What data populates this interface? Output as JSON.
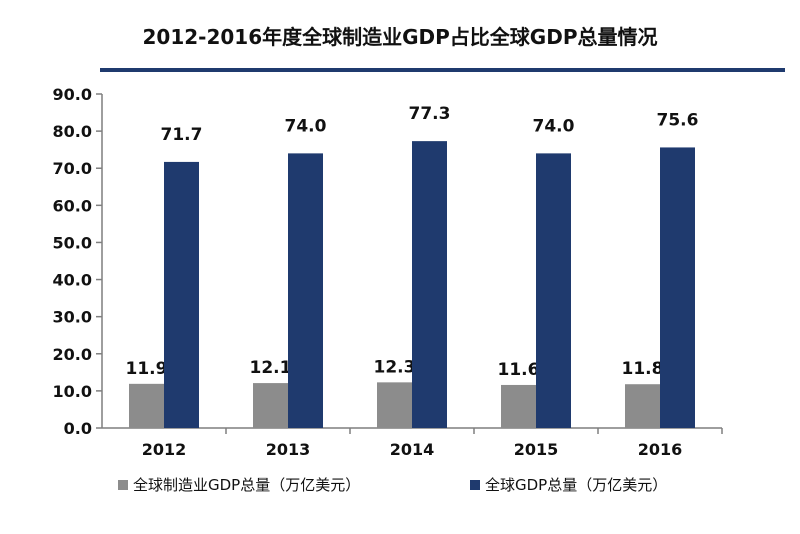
{
  "chart_data": {
    "type": "bar",
    "title": "2012-2016年度全球制造业GDP占比全球GDP总量情况",
    "xlabel": "",
    "ylabel": "",
    "categories": [
      "2012",
      "2013",
      "2014",
      "2015",
      "2016"
    ],
    "series": [
      {
        "name": "全球制造业GDP总量（万亿美元）",
        "values": [
          11.9,
          12.1,
          12.3,
          11.6,
          11.8
        ],
        "color": "#8c8c8c"
      },
      {
        "name": "全球GDP总量（万亿美元）",
        "values": [
          71.7,
          74.0,
          77.3,
          74.0,
          75.6
        ],
        "color": "#1f3a6e"
      }
    ],
    "ylim": [
      0,
      90
    ],
    "yticks": [
      "0.0",
      "10.0",
      "20.0",
      "30.0",
      "40.0",
      "50.0",
      "60.0",
      "70.0",
      "80.0",
      "90.0"
    ],
    "grid": false,
    "legend_position": "bottom",
    "title_rule_color": "#1f3a6e",
    "axis_color": "#7f7f7f"
  }
}
